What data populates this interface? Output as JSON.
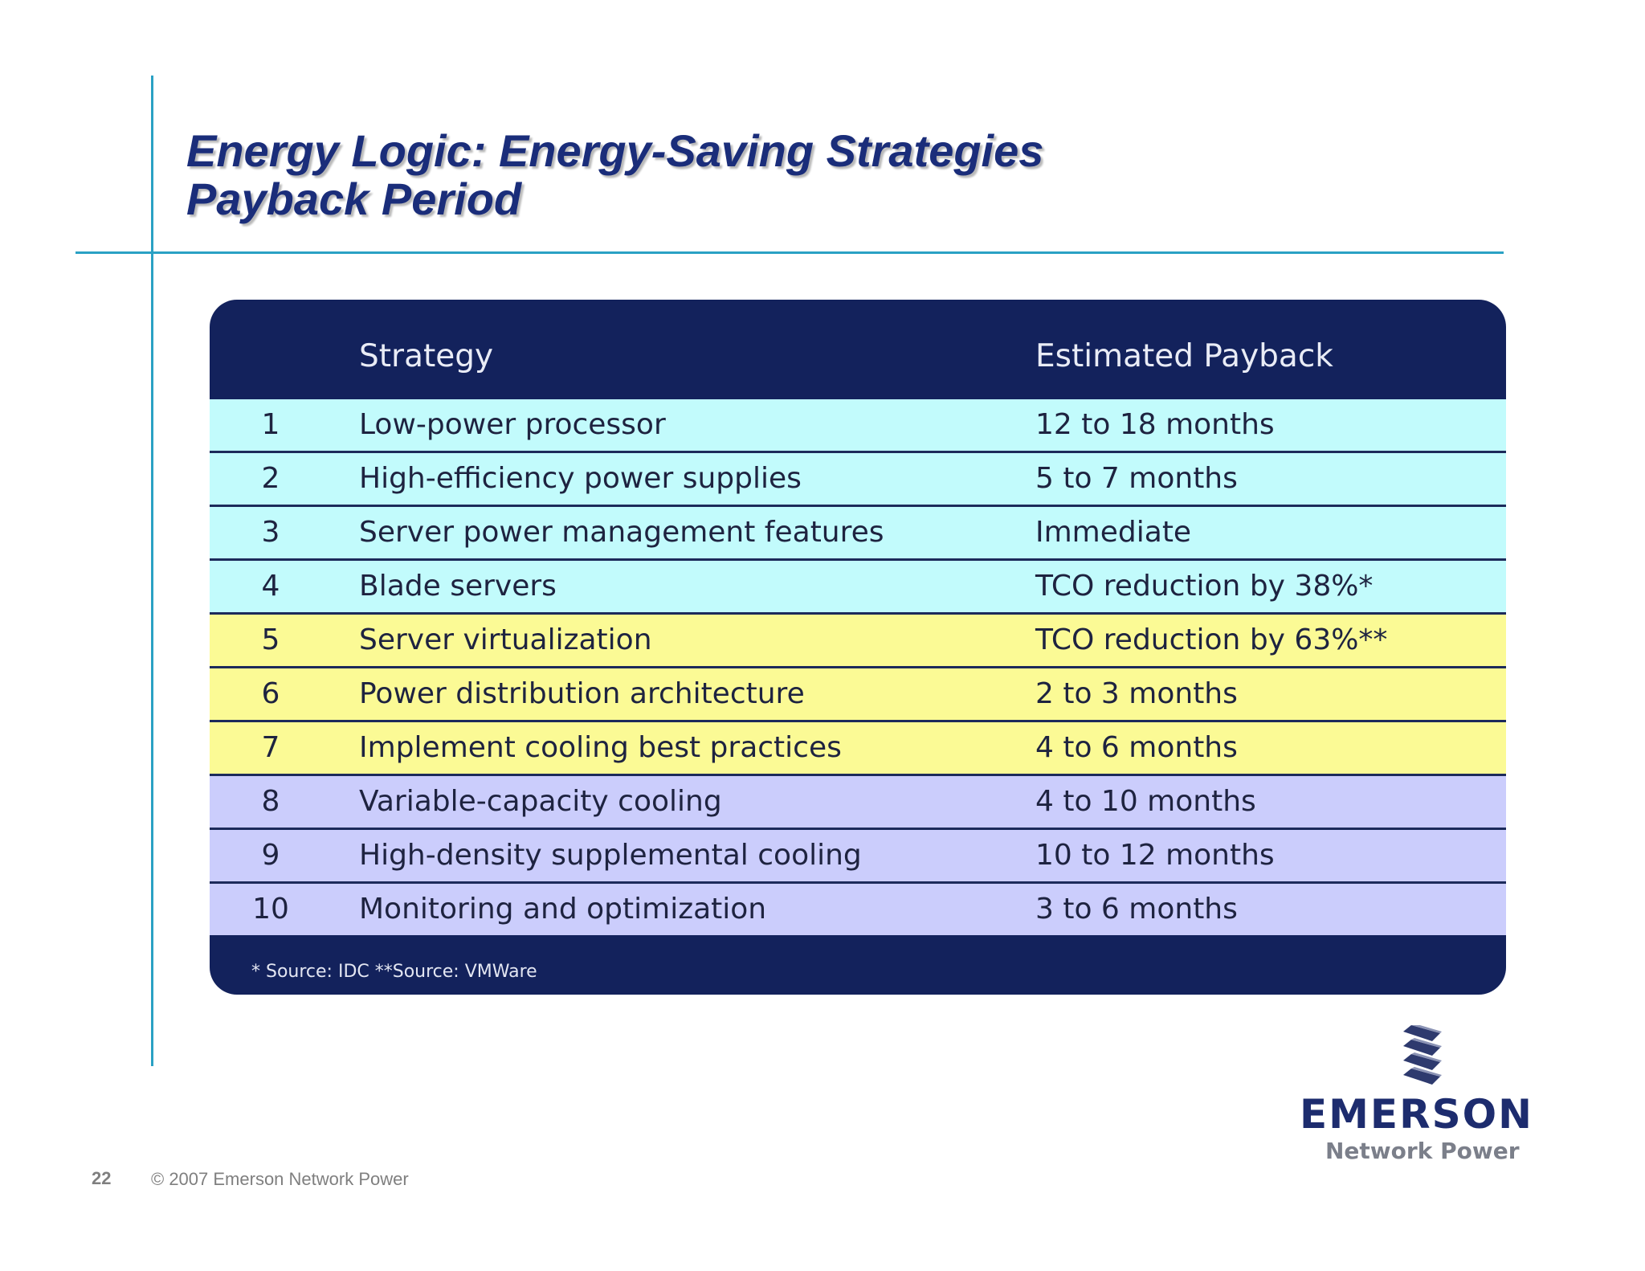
{
  "slide": {
    "title_line1": "Energy Logic: Energy-Saving Strategies",
    "title_line2": "Payback Period",
    "page_number": "22",
    "copyright": "© 2007 Emerson Network Power"
  },
  "table": {
    "headers": {
      "number": "",
      "strategy": "Strategy",
      "payback": "Estimated Payback"
    },
    "rows": [
      {
        "num": "1",
        "strategy": "Low-power processor",
        "payback": "12 to 18 months",
        "group": "cyan"
      },
      {
        "num": "2",
        "strategy": "High-efficiency power supplies",
        "payback": "5 to  7 months",
        "group": "cyan"
      },
      {
        "num": "3",
        "strategy": "Server power management features",
        "payback": "Immediate",
        "group": "cyan"
      },
      {
        "num": "4",
        "strategy": "Blade servers",
        "payback": "TCO reduction by 38%*",
        "group": "cyan"
      },
      {
        "num": "5",
        "strategy": "Server virtualization",
        "payback": "TCO reduction by 63%**",
        "group": "yellow"
      },
      {
        "num": "6",
        "strategy": "Power distribution architecture",
        "payback": "2 to 3 months",
        "group": "yellow"
      },
      {
        "num": "7",
        "strategy": "Implement cooling best practices",
        "payback": "4 to 6 months",
        "group": "yellow"
      },
      {
        "num": "8",
        "strategy": "Variable-capacity cooling",
        "payback": "4 to 10 months",
        "group": "lavender"
      },
      {
        "num": "9",
        "strategy": "High-density supplemental cooling",
        "payback": "10 to 12 months",
        "group": "lavender"
      },
      {
        "num": "10",
        "strategy": "Monitoring and optimization",
        "payback": "3 to 6 months",
        "group": "lavender"
      }
    ],
    "footnote": "* Source: IDC  **Source: VMWare"
  },
  "logo": {
    "brand": "EMERSON",
    "tagline": "Network Power"
  },
  "colors": {
    "accent_line": "#2aa1c4",
    "title": "#1a2d7a",
    "table_header": "#13225c",
    "row_cyan": "#c2fbfc",
    "row_yellow": "#fbfa95",
    "row_lavender": "#cbcdfc"
  }
}
